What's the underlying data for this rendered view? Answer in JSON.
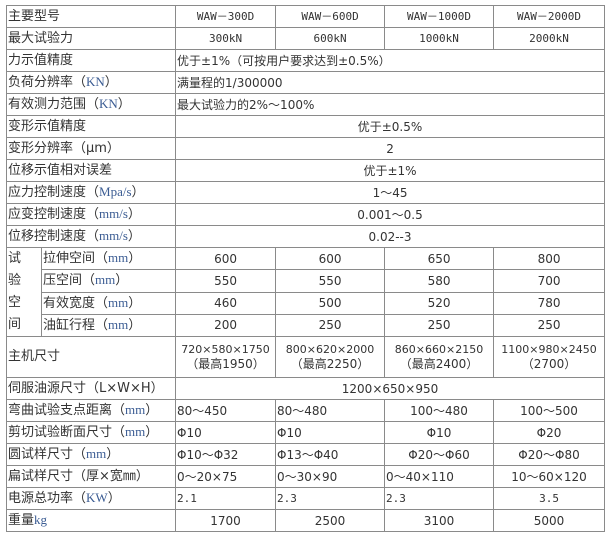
{
  "models": [
    "WAW－300D",
    "WAW－600D",
    "WAW－1000D",
    "WAW－2000D"
  ],
  "rows": {
    "model": {
      "label": "主要型号"
    },
    "max_force": {
      "label": "最大试验力",
      "values": [
        "300kN",
        "600kN",
        "1000kN",
        "2000kN"
      ]
    },
    "force_accuracy": {
      "label": "力示值精度",
      "value": "优于±1%（可按用户要求达到±0.5%）"
    },
    "load_resolution": {
      "label": "负荷分辨率（",
      "unit": "KN",
      "close": "）",
      "value": "满量程的1/300000"
    },
    "force_range": {
      "label": "有效测力范围（",
      "unit": "KN",
      "close": "）",
      "value": "最大试验力的2%～100%"
    },
    "deform_accuracy": {
      "label": "变形示值精度",
      "value": "优于±0.5%"
    },
    "deform_resolution": {
      "label": "变形分辨率（μm）",
      "value": "2"
    },
    "disp_error": {
      "label": "位移示值相对误差",
      "value": "优于±1%"
    },
    "stress_speed": {
      "label": "应力控制速度（",
      "unit": "Mpa/s",
      "close": "）",
      "value": "1～45"
    },
    "strain_speed": {
      "label": "应变控制速度（",
      "unit": "mm/s",
      "close": "）",
      "value": "0.001～0.5"
    },
    "disp_speed": {
      "label": "位移控制速度（",
      "unit": "mm/s",
      "close": "）",
      "value": "0.02--3"
    },
    "test_space": {
      "group_label": [
        "试",
        "验",
        "空",
        "间"
      ],
      "items": [
        {
          "label": "拉伸空间（",
          "unit": "mm",
          "close": "）",
          "values": [
            "600",
            "600",
            "650",
            "800"
          ]
        },
        {
          "label": "压空间（",
          "unit": "mm",
          "close": "）",
          "values": [
            "550",
            "550",
            "580",
            "700"
          ]
        },
        {
          "label": "有效宽度（",
          "unit": "mm",
          "close": "）",
          "values": [
            "460",
            "500",
            "520",
            "780"
          ]
        },
        {
          "label": "油缸行程（",
          "unit": "mm",
          "close": "）",
          "values": [
            "200",
            "250",
            "250",
            "250"
          ]
        }
      ]
    },
    "main_size": {
      "label": "主机尺寸",
      "values": [
        "720×580×1750",
        "800×620×2000",
        "860×660×2150",
        "1100×980×2450"
      ],
      "heights": [
        "（最高1950）",
        "（最高2250）",
        "（最高2400）",
        "（2700）"
      ]
    },
    "servo_size": {
      "label": "伺服油源尺寸（L×W×H）",
      "value": "1200×650×950"
    },
    "bend_distance": {
      "label": "弯曲试验支点距离（",
      "unit": "mm",
      "close": "）",
      "values": [
        "80～450",
        "80～480",
        "100～480",
        "100～500"
      ]
    },
    "shear_section": {
      "label": "剪切试验断面尺寸（",
      "unit": "mm",
      "close": "）",
      "values": [
        "Φ10",
        "Φ10",
        "Φ10",
        "Φ20"
      ]
    },
    "round_specimen": {
      "label": "圆试样尺寸（",
      "unit": "mm",
      "close": "）",
      "values": [
        "Φ10～Φ32",
        "Φ13～Φ40",
        "Φ20～Φ60",
        "Φ20～Φ80"
      ]
    },
    "flat_specimen": {
      "label": "扁试样尺寸（厚×宽㎜）",
      "values": [
        "0～20×75",
        "0～30×90",
        "0～40×110",
        "10～60×120"
      ]
    },
    "power": {
      "label": "电源总功率（",
      "unit": "KW",
      "close": "）",
      "values": [
        "2.1",
        "2.3",
        "2.3",
        "3.5"
      ]
    },
    "weight": {
      "label": "重量",
      "unit": "kg",
      "values": [
        "1700",
        "2500",
        "3100",
        "5000"
      ]
    }
  }
}
